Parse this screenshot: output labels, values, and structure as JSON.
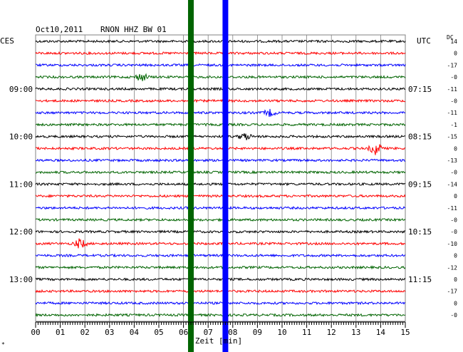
{
  "header": {
    "date": "Oct10,2011",
    "station": "RNON HHZ BW 01",
    "left_zone": "CES",
    "right_zone": "UTC",
    "dc_label": "DC"
  },
  "footer": {
    "xlabel": "Zeit [min]"
  },
  "colors": {
    "trace_cycle": [
      "#000000",
      "#ff0000",
      "#0000ff",
      "#006400"
    ],
    "marker_green": "#006400",
    "marker_blue": "#0000ff",
    "grid": "#808080"
  },
  "chart_data": {
    "type": "line",
    "title": "Oct10,2011  RNON HHZ BW 01",
    "xlabel": "Zeit [min]",
    "xlim": [
      0,
      15
    ],
    "x_ticks": [
      "00",
      "01",
      "02",
      "03",
      "04",
      "05",
      "06",
      "07",
      "08",
      "09",
      "10",
      "11",
      "12",
      "13",
      "14",
      "15"
    ],
    "rows": 24,
    "left_time_labels": [
      {
        "row": 4,
        "text": "09:00"
      },
      {
        "row": 8,
        "text": "10:00"
      },
      {
        "row": 12,
        "text": "11:00"
      },
      {
        "row": 16,
        "text": "12:00"
      },
      {
        "row": 20,
        "text": "13:00"
      }
    ],
    "right_time_labels": [
      {
        "row": 4,
        "text": "07:15"
      },
      {
        "row": 8,
        "text": "08:15"
      },
      {
        "row": 12,
        "text": "09:15"
      },
      {
        "row": 16,
        "text": "10:15"
      },
      {
        "row": 20,
        "text": "11:15"
      }
    ],
    "dc_offsets": [
      "14",
      "0",
      "-17",
      "-0",
      "-11",
      "-0",
      "-11",
      "-1",
      "-15",
      "0",
      "-13",
      "-0",
      "-14",
      "0",
      "-11",
      "-0",
      "-0",
      "-10",
      "0",
      "-12",
      "0",
      "-17",
      "0",
      "-0"
    ],
    "events": [
      {
        "row": 3,
        "minute": 4.3,
        "amplitude": 2.5
      },
      {
        "row": 6,
        "minute": 9.5,
        "amplitude": 2.0
      },
      {
        "row": 8,
        "minute": 8.5,
        "amplitude": 2.2
      },
      {
        "row": 9,
        "minute": 13.8,
        "amplitude": 4.0
      },
      {
        "row": 17,
        "minute": 1.8,
        "amplitude": 3.0
      }
    ],
    "markers": [
      {
        "minute": 6.3,
        "color": "green"
      },
      {
        "minute": 7.7,
        "color": "blue"
      }
    ]
  }
}
